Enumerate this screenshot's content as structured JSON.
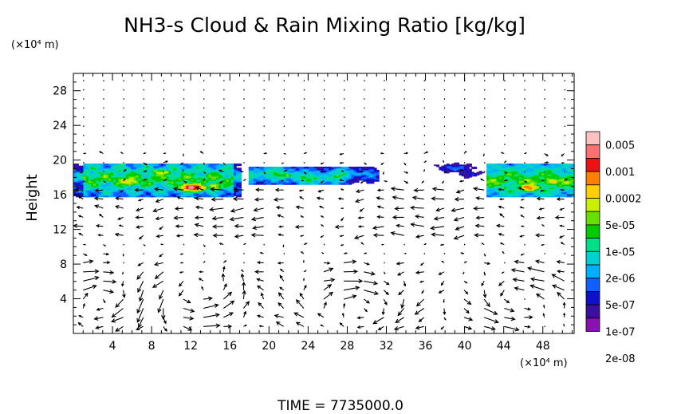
{
  "chart_data": {
    "type": "heatmap",
    "title": "NH3-s Cloud & Rain Mixing Ratio [kg/kg]",
    "ylabel": "Height",
    "x_unit": "(×10⁴ m)",
    "y_unit": "(×10⁴ m)",
    "footer": "TIME  =  7735000.0",
    "xlim": [
      0,
      51.2
    ],
    "ylim": [
      0,
      30
    ],
    "x_ticks": [
      4,
      8,
      12,
      16,
      20,
      24,
      28,
      32,
      36,
      40,
      44,
      48
    ],
    "y_ticks": [
      4,
      8,
      12,
      16,
      20,
      24,
      28
    ],
    "colorbar": {
      "labels": [
        "0.005",
        "0.001",
        "0.0002",
        "5e-05",
        "1e-05",
        "2e-06",
        "5e-07",
        "1e-07",
        "2e-08"
      ],
      "colors": [
        "#ffc0c0",
        "#ff7070",
        "#ee1111",
        "#ff7f00",
        "#ffd000",
        "#c8f000",
        "#66e000",
        "#00cc00",
        "#00e088",
        "#00d0d0",
        "#00b0ff",
        "#1060ff",
        "#1010cc",
        "#3a10a0",
        "#8a10b0"
      ]
    },
    "cloud_regions": [
      {
        "x_range": [
          0,
          17
        ],
        "z_range": [
          16,
          19.5
        ],
        "peak": "0.001",
        "peak_x": 12,
        "peak_z": 17
      },
      {
        "x_range": [
          18,
          31
        ],
        "z_range": [
          17.5,
          19
        ],
        "peak": "2e-06"
      },
      {
        "x_range": [
          37,
          41
        ],
        "z_range": [
          18.5,
          19.5
        ],
        "peak": "1e-07"
      },
      {
        "x_range": [
          42,
          51.2
        ],
        "z_range": [
          16,
          19.5
        ],
        "peak": "0.0002",
        "peak_x": 46.5,
        "peak_z": 16.8
      }
    ],
    "wind_vectors": "dense field of arrows; circulation cells in lower layer near x=12, x=28 and x=46"
  }
}
